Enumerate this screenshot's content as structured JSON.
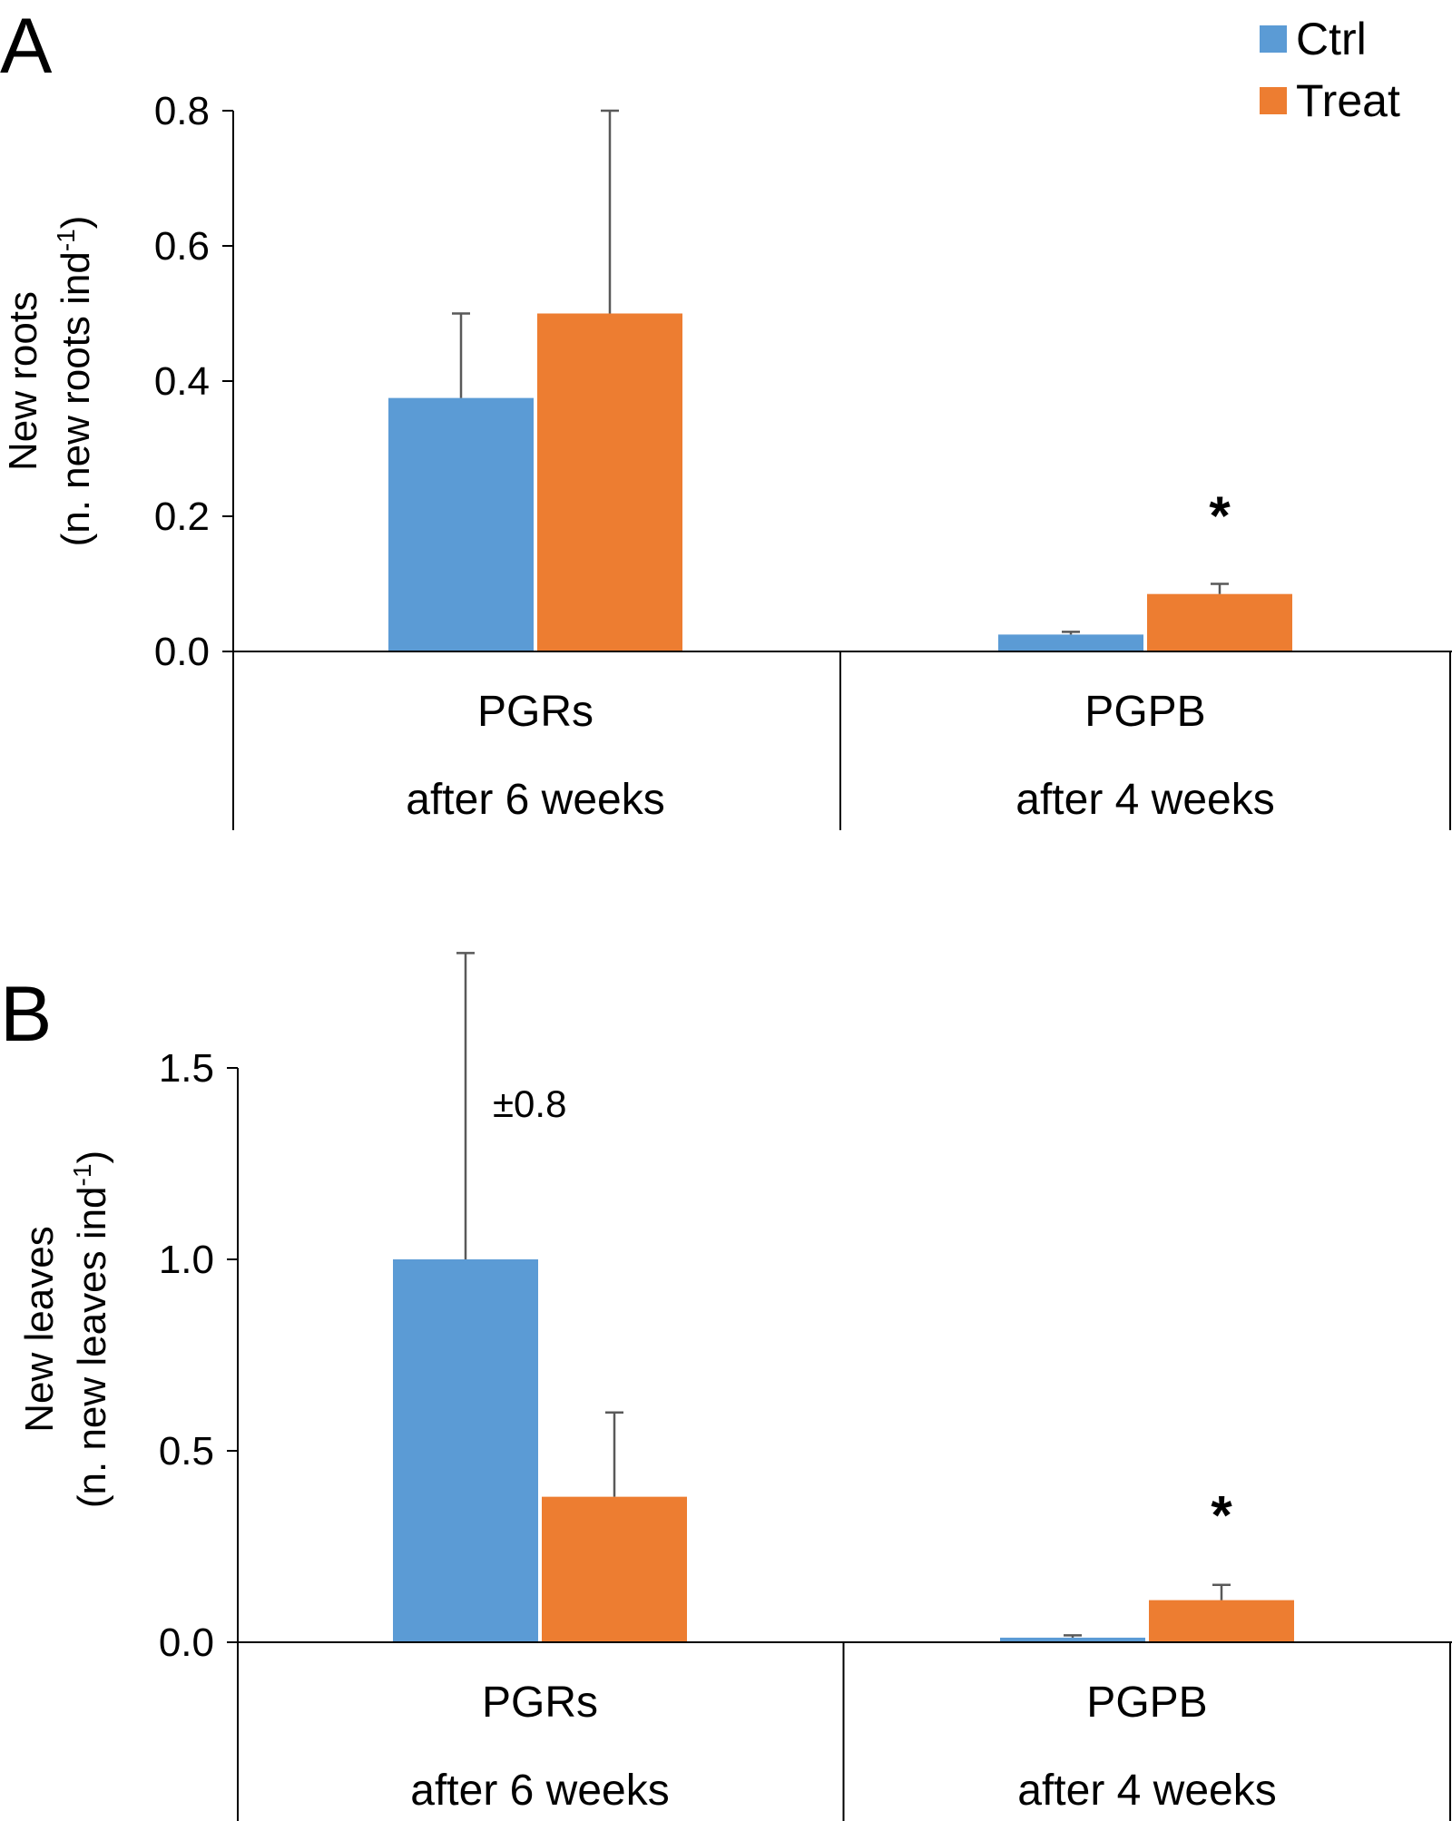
{
  "colors": {
    "ctrl": "#5B9BD5",
    "treat": "#ED7D31",
    "axis": "#000000",
    "error": "#595959"
  },
  "legend": [
    {
      "name": "Ctrl",
      "color": "#5B9BD5"
    },
    {
      "name": "Treat",
      "color": "#ED7D31"
    }
  ],
  "chart_data": [
    {
      "panel": "A",
      "type": "bar",
      "ylabel_line1": "New roots",
      "ylabel_line2_prefix": "(n. new roots ind",
      "ylabel_sup": "-1",
      "ylabel_line2_suffix": ")",
      "ylim": [
        0,
        0.8
      ],
      "yticks": [
        0.0,
        0.2,
        0.4,
        0.6,
        0.8
      ],
      "ytick_labels": [
        "0.0",
        "0.2",
        "0.4",
        "0.6",
        "0.8"
      ],
      "groups": [
        {
          "category": "PGRs",
          "sublabel": "after 6 weeks"
        },
        {
          "category": "PGPB",
          "sublabel": "after 4 weeks"
        }
      ],
      "series": [
        {
          "name": "Ctrl",
          "values": [
            0.375,
            0.025
          ],
          "errors": [
            0.125,
            0.004
          ]
        },
        {
          "name": "Treat",
          "values": [
            0.5,
            0.085
          ],
          "errors": [
            0.3,
            0.015
          ]
        }
      ],
      "annotations": [
        {
          "text": "*",
          "group": 1,
          "series": 1,
          "value": 0.2
        }
      ]
    },
    {
      "panel": "B",
      "type": "bar",
      "ylabel_line1": "New leaves",
      "ylabel_line2_prefix": "(n. new leaves ind",
      "ylabel_sup": "-1",
      "ylabel_line2_suffix": ")",
      "ylim": [
        0,
        1.5
      ],
      "yticks": [
        0.0,
        0.5,
        1.0,
        1.5
      ],
      "ytick_labels": [
        "0.0",
        "0.5",
        "1.0",
        "1.5"
      ],
      "groups": [
        {
          "category": "PGRs",
          "sublabel": "after 6 weeks"
        },
        {
          "category": "PGPB",
          "sublabel": "after 4 weeks"
        }
      ],
      "series": [
        {
          "name": "Ctrl",
          "values": [
            1.0,
            0.012
          ],
          "errors": [
            0.8,
            0.006
          ]
        },
        {
          "name": "Treat",
          "values": [
            0.38,
            0.11
          ],
          "errors": [
            0.22,
            0.04
          ]
        }
      ],
      "annotations": [
        {
          "text": "*",
          "group": 1,
          "series": 1,
          "value": 0.33
        },
        {
          "text": "±0.8",
          "group": 0,
          "series": 0,
          "value": 1.42,
          "offset": "right"
        }
      ]
    }
  ]
}
